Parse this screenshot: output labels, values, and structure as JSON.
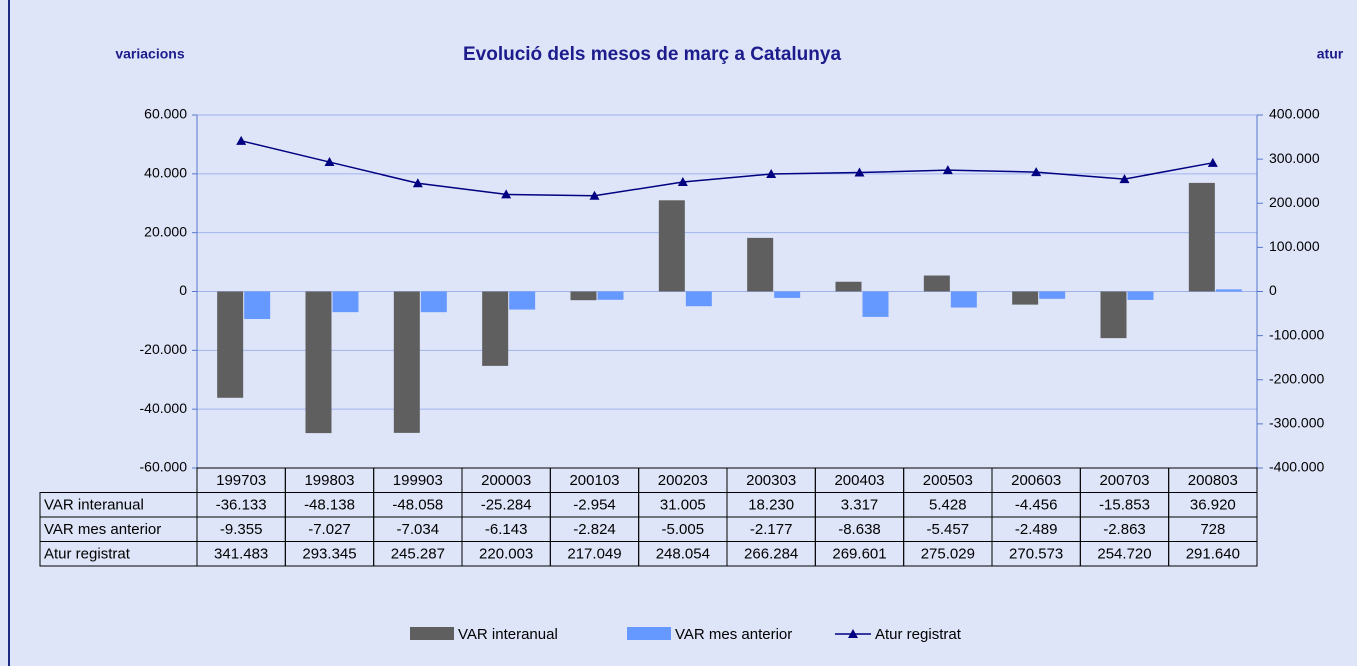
{
  "chart_data": {
    "type": "bar",
    "title": "Evolució dels mesos de març a Catalunya",
    "y_label": "variacions",
    "y2_label": "atur",
    "categories": [
      "199703",
      "199803",
      "199903",
      "200003",
      "200103",
      "200203",
      "200303",
      "200403",
      "200503",
      "200603",
      "200703",
      "200803"
    ],
    "series": [
      {
        "name": "VAR interanual",
        "color": "#5f5f5f",
        "values": [
          -36133,
          -48138,
          -48058,
          -25284,
          -2954,
          31005,
          18230,
          3317,
          5428,
          -4456,
          -15853,
          36920
        ],
        "value_labels": [
          "-36.133",
          "-48.138",
          "-48.058",
          "-25.284",
          "-2.954",
          "31.005",
          "18.230",
          "3.317",
          "5.428",
          "-4.456",
          "-15.853",
          "36.920"
        ]
      },
      {
        "name": "VAR mes anterior",
        "color": "#6699ff",
        "values": [
          -9355,
          -7027,
          -7034,
          -6143,
          -2824,
          -5005,
          -2177,
          -8638,
          -5457,
          -2489,
          -2863,
          728
        ],
        "value_labels": [
          "-9.355",
          "-7.027",
          "-7.034",
          "-6.143",
          "-2.824",
          "-5.005",
          "-2.177",
          "-8.638",
          "-5.457",
          "-2.489",
          "-2.863",
          "728"
        ]
      },
      {
        "name": "Atur registrat",
        "color": "#000080",
        "type": "line",
        "axis": "y2",
        "values": [
          341483,
          293345,
          245287,
          220003,
          217049,
          248054,
          266284,
          269601,
          275029,
          270573,
          254720,
          291640
        ],
        "value_labels": [
          "341.483",
          "293.345",
          "245.287",
          "220.003",
          "217.049",
          "248.054",
          "266.284",
          "269.601",
          "275.029",
          "270.573",
          "254.720",
          "291.640"
        ]
      }
    ],
    "ylim": [
      -60000,
      60000
    ],
    "yticks": [
      {
        "value": -60000,
        "label": "-60.000"
      },
      {
        "value": -40000,
        "label": "-40.000"
      },
      {
        "value": -20000,
        "label": "-20.000"
      },
      0,
      {
        "value": 20000,
        "label": "20.000"
      },
      {
        "value": 40000,
        "label": "40.000"
      },
      {
        "value": 60000,
        "label": "60.000"
      }
    ],
    "y2lim": [
      -400000,
      400000
    ],
    "y2ticks": [
      {
        "value": -400000,
        "label": "-400.000"
      },
      {
        "value": -300000,
        "label": "-300.000"
      },
      {
        "value": -200000,
        "label": "-200.000"
      },
      {
        "value": -100000,
        "label": "-100.000"
      },
      0,
      {
        "value": 100000,
        "label": "100.000"
      },
      {
        "value": 200000,
        "label": "200.000"
      },
      {
        "value": 300000,
        "label": "300.000"
      },
      {
        "value": 400000,
        "label": "400.000"
      }
    ],
    "grid": true,
    "legend": "bottom"
  }
}
